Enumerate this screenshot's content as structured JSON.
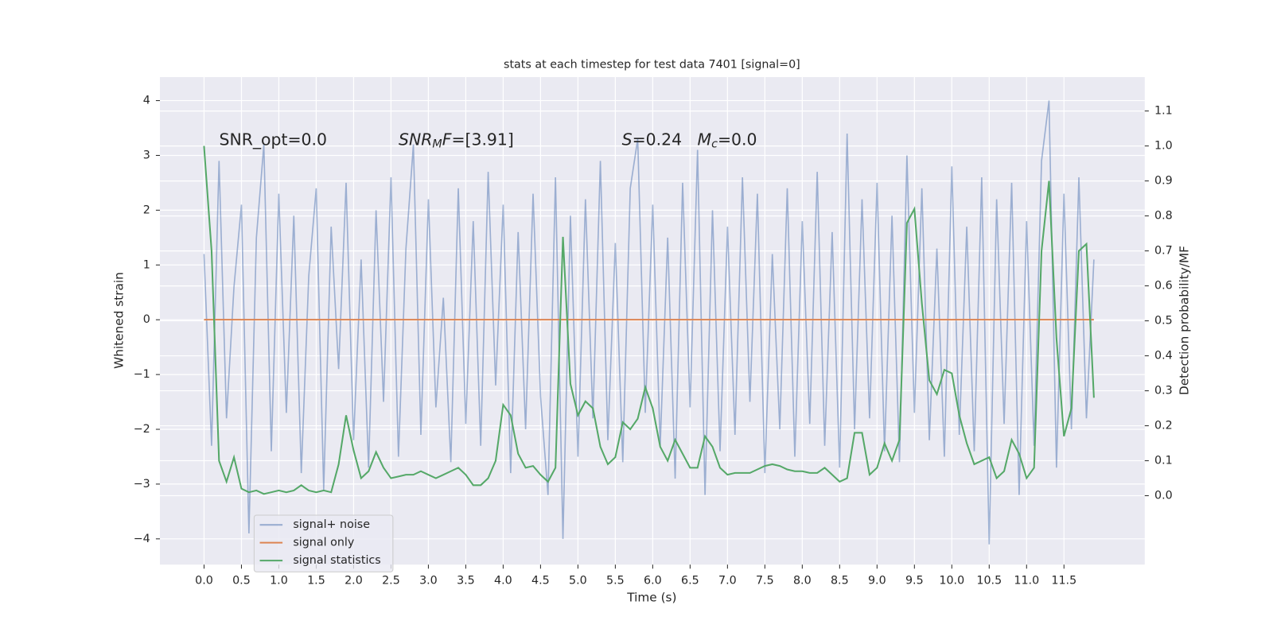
{
  "chart_data": {
    "type": "line",
    "title": "stats at each timestep for test data 7401 [signal=0]",
    "xlabel": "Time (s)",
    "ylabel": "Whitened strain",
    "y2label": "Detection probability/MF",
    "annotations": [
      {
        "parts": [
          {
            "text": "SNR_opt=0.0"
          }
        ]
      },
      {
        "parts": [
          {
            "text": "SNR",
            "italic": true
          },
          {
            "text": "M",
            "italic": true,
            "sub": true
          },
          {
            "text": "F",
            "italic": true
          },
          {
            "text": "=[3.91]"
          }
        ]
      },
      {
        "parts": [
          {
            "text": "S",
            "italic": true
          },
          {
            "text": "=0.24   "
          },
          {
            "text": "M",
            "italic": true
          },
          {
            "text": "c",
            "italic": true,
            "sub": true
          },
          {
            "text": "=0.0"
          }
        ]
      }
    ],
    "x": [
      0.0,
      0.1,
      0.2,
      0.3,
      0.4,
      0.5,
      0.6,
      0.7,
      0.8,
      0.9,
      1.0,
      1.1,
      1.2,
      1.3,
      1.4,
      1.5,
      1.6,
      1.7,
      1.8,
      1.9,
      2.0,
      2.1,
      2.2,
      2.3,
      2.4,
      2.5,
      2.6,
      2.7,
      2.8,
      2.9,
      3.0,
      3.1,
      3.2,
      3.3,
      3.4,
      3.5,
      3.6,
      3.7,
      3.8,
      3.9,
      4.0,
      4.1,
      4.2,
      4.3,
      4.4,
      4.5,
      4.6,
      4.7,
      4.8,
      4.9,
      5.0,
      5.1,
      5.2,
      5.3,
      5.4,
      5.5,
      5.6,
      5.7,
      5.8,
      5.9,
      6.0,
      6.1,
      6.2,
      6.3,
      6.4,
      6.5,
      6.6,
      6.7,
      6.8,
      6.9,
      7.0,
      7.1,
      7.2,
      7.3,
      7.4,
      7.5,
      7.6,
      7.7,
      7.8,
      7.9,
      8.0,
      8.1,
      8.2,
      8.3,
      8.4,
      8.5,
      8.6,
      8.7,
      8.8,
      8.9,
      9.0,
      9.1,
      9.2,
      9.3,
      9.4,
      9.5,
      9.6,
      9.7,
      9.8,
      9.9,
      10.0,
      10.1,
      10.2,
      10.3,
      10.4,
      10.5,
      10.6,
      10.7,
      10.8,
      10.9,
      11.0,
      11.1,
      11.2,
      11.3,
      11.4,
      11.5,
      11.6,
      11.7,
      11.8,
      11.9
    ],
    "series": [
      {
        "name": "signal+ noise",
        "color": "#4c72b0",
        "opacity": 0.5,
        "axis": "y",
        "values": [
          1.2,
          -2.3,
          2.9,
          -1.8,
          0.6,
          2.1,
          -3.9,
          1.5,
          3.2,
          -2.4,
          2.3,
          -1.7,
          1.9,
          -2.8,
          0.8,
          2.4,
          -3.1,
          1.7,
          -0.9,
          2.5,
          -2.2,
          1.1,
          -2.7,
          2.0,
          -1.5,
          2.6,
          -2.5,
          1.3,
          3.2,
          -2.1,
          2.2,
          -1.6,
          0.4,
          -2.6,
          2.4,
          -1.9,
          1.8,
          -2.3,
          2.7,
          -1.2,
          2.1,
          -2.8,
          1.6,
          -2.0,
          2.3,
          -1.4,
          -3.2,
          2.6,
          -4.0,
          1.9,
          -2.5,
          2.2,
          -1.8,
          2.9,
          -2.2,
          1.4,
          -2.6,
          2.4,
          3.3,
          -1.7,
          2.1,
          -2.3,
          1.5,
          -2.9,
          2.5,
          -1.6,
          3.1,
          -3.2,
          2.0,
          -2.4,
          1.7,
          -2.1,
          2.6,
          -1.5,
          2.3,
          -2.8,
          1.2,
          -2.0,
          2.4,
          -2.5,
          1.8,
          -1.9,
          2.7,
          -2.3,
          1.6,
          -2.7,
          3.4,
          -2.0,
          2.2,
          -1.8,
          2.5,
          -2.4,
          1.9,
          -2.6,
          3.0,
          -1.7,
          2.4,
          -2.2,
          1.3,
          -2.5,
          2.8,
          -2.1,
          1.7,
          -2.4,
          2.6,
          -4.1,
          2.2,
          -1.9,
          2.5,
          -3.2,
          1.8,
          -2.3,
          2.9,
          4.0,
          -2.7,
          2.3,
          -2.0,
          2.6,
          -1.8,
          1.1
        ]
      },
      {
        "name": "signal only",
        "color": "#dd8452",
        "opacity": 1,
        "axis": "y",
        "values": [
          0,
          0,
          0,
          0,
          0,
          0,
          0,
          0,
          0,
          0,
          0,
          0,
          0,
          0,
          0,
          0,
          0,
          0,
          0,
          0,
          0,
          0,
          0,
          0,
          0,
          0,
          0,
          0,
          0,
          0,
          0,
          0,
          0,
          0,
          0,
          0,
          0,
          0,
          0,
          0,
          0,
          0,
          0,
          0,
          0,
          0,
          0,
          0,
          0,
          0,
          0,
          0,
          0,
          0,
          0,
          0,
          0,
          0,
          0,
          0,
          0,
          0,
          0,
          0,
          0,
          0,
          0,
          0,
          0,
          0,
          0,
          0,
          0,
          0,
          0,
          0,
          0,
          0,
          0,
          0,
          0,
          0,
          0,
          0,
          0,
          0,
          0,
          0,
          0,
          0,
          0,
          0,
          0,
          0,
          0,
          0,
          0,
          0,
          0,
          0,
          0,
          0,
          0,
          0,
          0,
          0,
          0,
          0,
          0,
          0,
          0,
          0,
          0,
          0,
          0,
          0,
          0,
          0,
          0,
          0
        ]
      },
      {
        "name": "signal statistics",
        "color": "#55a868",
        "opacity": 1,
        "axis": "y2",
        "values": [
          1.0,
          0.7,
          0.1,
          0.04,
          0.11,
          0.02,
          0.01,
          0.015,
          0.005,
          0.01,
          0.015,
          0.01,
          0.015,
          0.03,
          0.015,
          0.01,
          0.015,
          0.01,
          0.09,
          0.23,
          0.13,
          0.05,
          0.07,
          0.125,
          0.08,
          0.05,
          0.055,
          0.06,
          0.06,
          0.07,
          0.06,
          0.05,
          0.06,
          0.07,
          0.08,
          0.06,
          0.03,
          0.03,
          0.05,
          0.1,
          0.26,
          0.23,
          0.12,
          0.08,
          0.085,
          0.06,
          0.04,
          0.08,
          0.74,
          0.32,
          0.23,
          0.27,
          0.25,
          0.14,
          0.09,
          0.11,
          0.21,
          0.19,
          0.22,
          0.31,
          0.25,
          0.14,
          0.1,
          0.16,
          0.12,
          0.08,
          0.08,
          0.17,
          0.14,
          0.08,
          0.06,
          0.065,
          0.065,
          0.065,
          0.075,
          0.085,
          0.09,
          0.085,
          0.075,
          0.07,
          0.07,
          0.065,
          0.065,
          0.08,
          0.06,
          0.04,
          0.05,
          0.18,
          0.18,
          0.06,
          0.08,
          0.15,
          0.1,
          0.16,
          0.78,
          0.82,
          0.55,
          0.33,
          0.29,
          0.36,
          0.35,
          0.23,
          0.15,
          0.09,
          0.1,
          0.11,
          0.05,
          0.07,
          0.16,
          0.12,
          0.05,
          0.08,
          0.7,
          0.9,
          0.45,
          0.17,
          0.25,
          0.7,
          0.72,
          0.28
        ]
      }
    ],
    "xlim": [
      -0.59,
      12.58
    ],
    "xticks": [
      {
        "value": 0,
        "label": "0.0"
      },
      {
        "value": 0.5,
        "label": "0.5"
      },
      {
        "value": 1,
        "label": "1.0"
      },
      {
        "value": 1.5,
        "label": "1.5"
      },
      {
        "value": 2,
        "label": "2.0"
      },
      {
        "value": 2.5,
        "label": "2.5"
      },
      {
        "value": 3,
        "label": "3.0"
      },
      {
        "value": 3.5,
        "label": "3.5"
      },
      {
        "value": 4,
        "label": "4.0"
      },
      {
        "value": 4.5,
        "label": "4.5"
      },
      {
        "value": 5,
        "label": "5.0"
      },
      {
        "value": 5.5,
        "label": "5.5"
      },
      {
        "value": 6,
        "label": "6.0"
      },
      {
        "value": 6.5,
        "label": "6.5"
      },
      {
        "value": 7,
        "label": "7.0"
      },
      {
        "value": 7.5,
        "label": "7.5"
      },
      {
        "value": 8,
        "label": "8.0"
      },
      {
        "value": 8.5,
        "label": "8.5"
      },
      {
        "value": 9,
        "label": "9.0"
      },
      {
        "value": 9.5,
        "label": "9.5"
      },
      {
        "value": 10,
        "label": "10.0"
      },
      {
        "value": 10.5,
        "label": "10.5"
      },
      {
        "value": 11,
        "label": "11.0"
      },
      {
        "value": 11.5,
        "label": "11.5"
      }
    ],
    "ylim": [
      -4.47,
      4.43
    ],
    "yticks": [
      {
        "value": -4,
        "label": "−4"
      },
      {
        "value": -3,
        "label": "−3"
      },
      {
        "value": -2,
        "label": "−2"
      },
      {
        "value": -1,
        "label": "−1"
      },
      0,
      1,
      2,
      3,
      4
    ],
    "y2lim": [
      -0.197,
      1.197
    ],
    "y2ticks": [
      {
        "value": 0,
        "label": "0.0"
      },
      {
        "value": 0.1,
        "label": "0.1"
      },
      {
        "value": 0.2,
        "label": "0.2"
      },
      {
        "value": 0.3,
        "label": "0.3"
      },
      {
        "value": 0.4,
        "label": "0.4"
      },
      {
        "value": 0.5,
        "label": "0.5"
      },
      {
        "value": 0.6,
        "label": "0.6"
      },
      {
        "value": 0.7,
        "label": "0.7"
      },
      {
        "value": 0.8,
        "label": "0.8"
      },
      {
        "value": 0.9,
        "label": "0.9"
      },
      {
        "value": 1,
        "label": "1.0"
      },
      {
        "value": 1.1,
        "label": "1.1"
      }
    ],
    "grid": true,
    "legend_loc": "lower left",
    "background": "#eaeaf2"
  }
}
